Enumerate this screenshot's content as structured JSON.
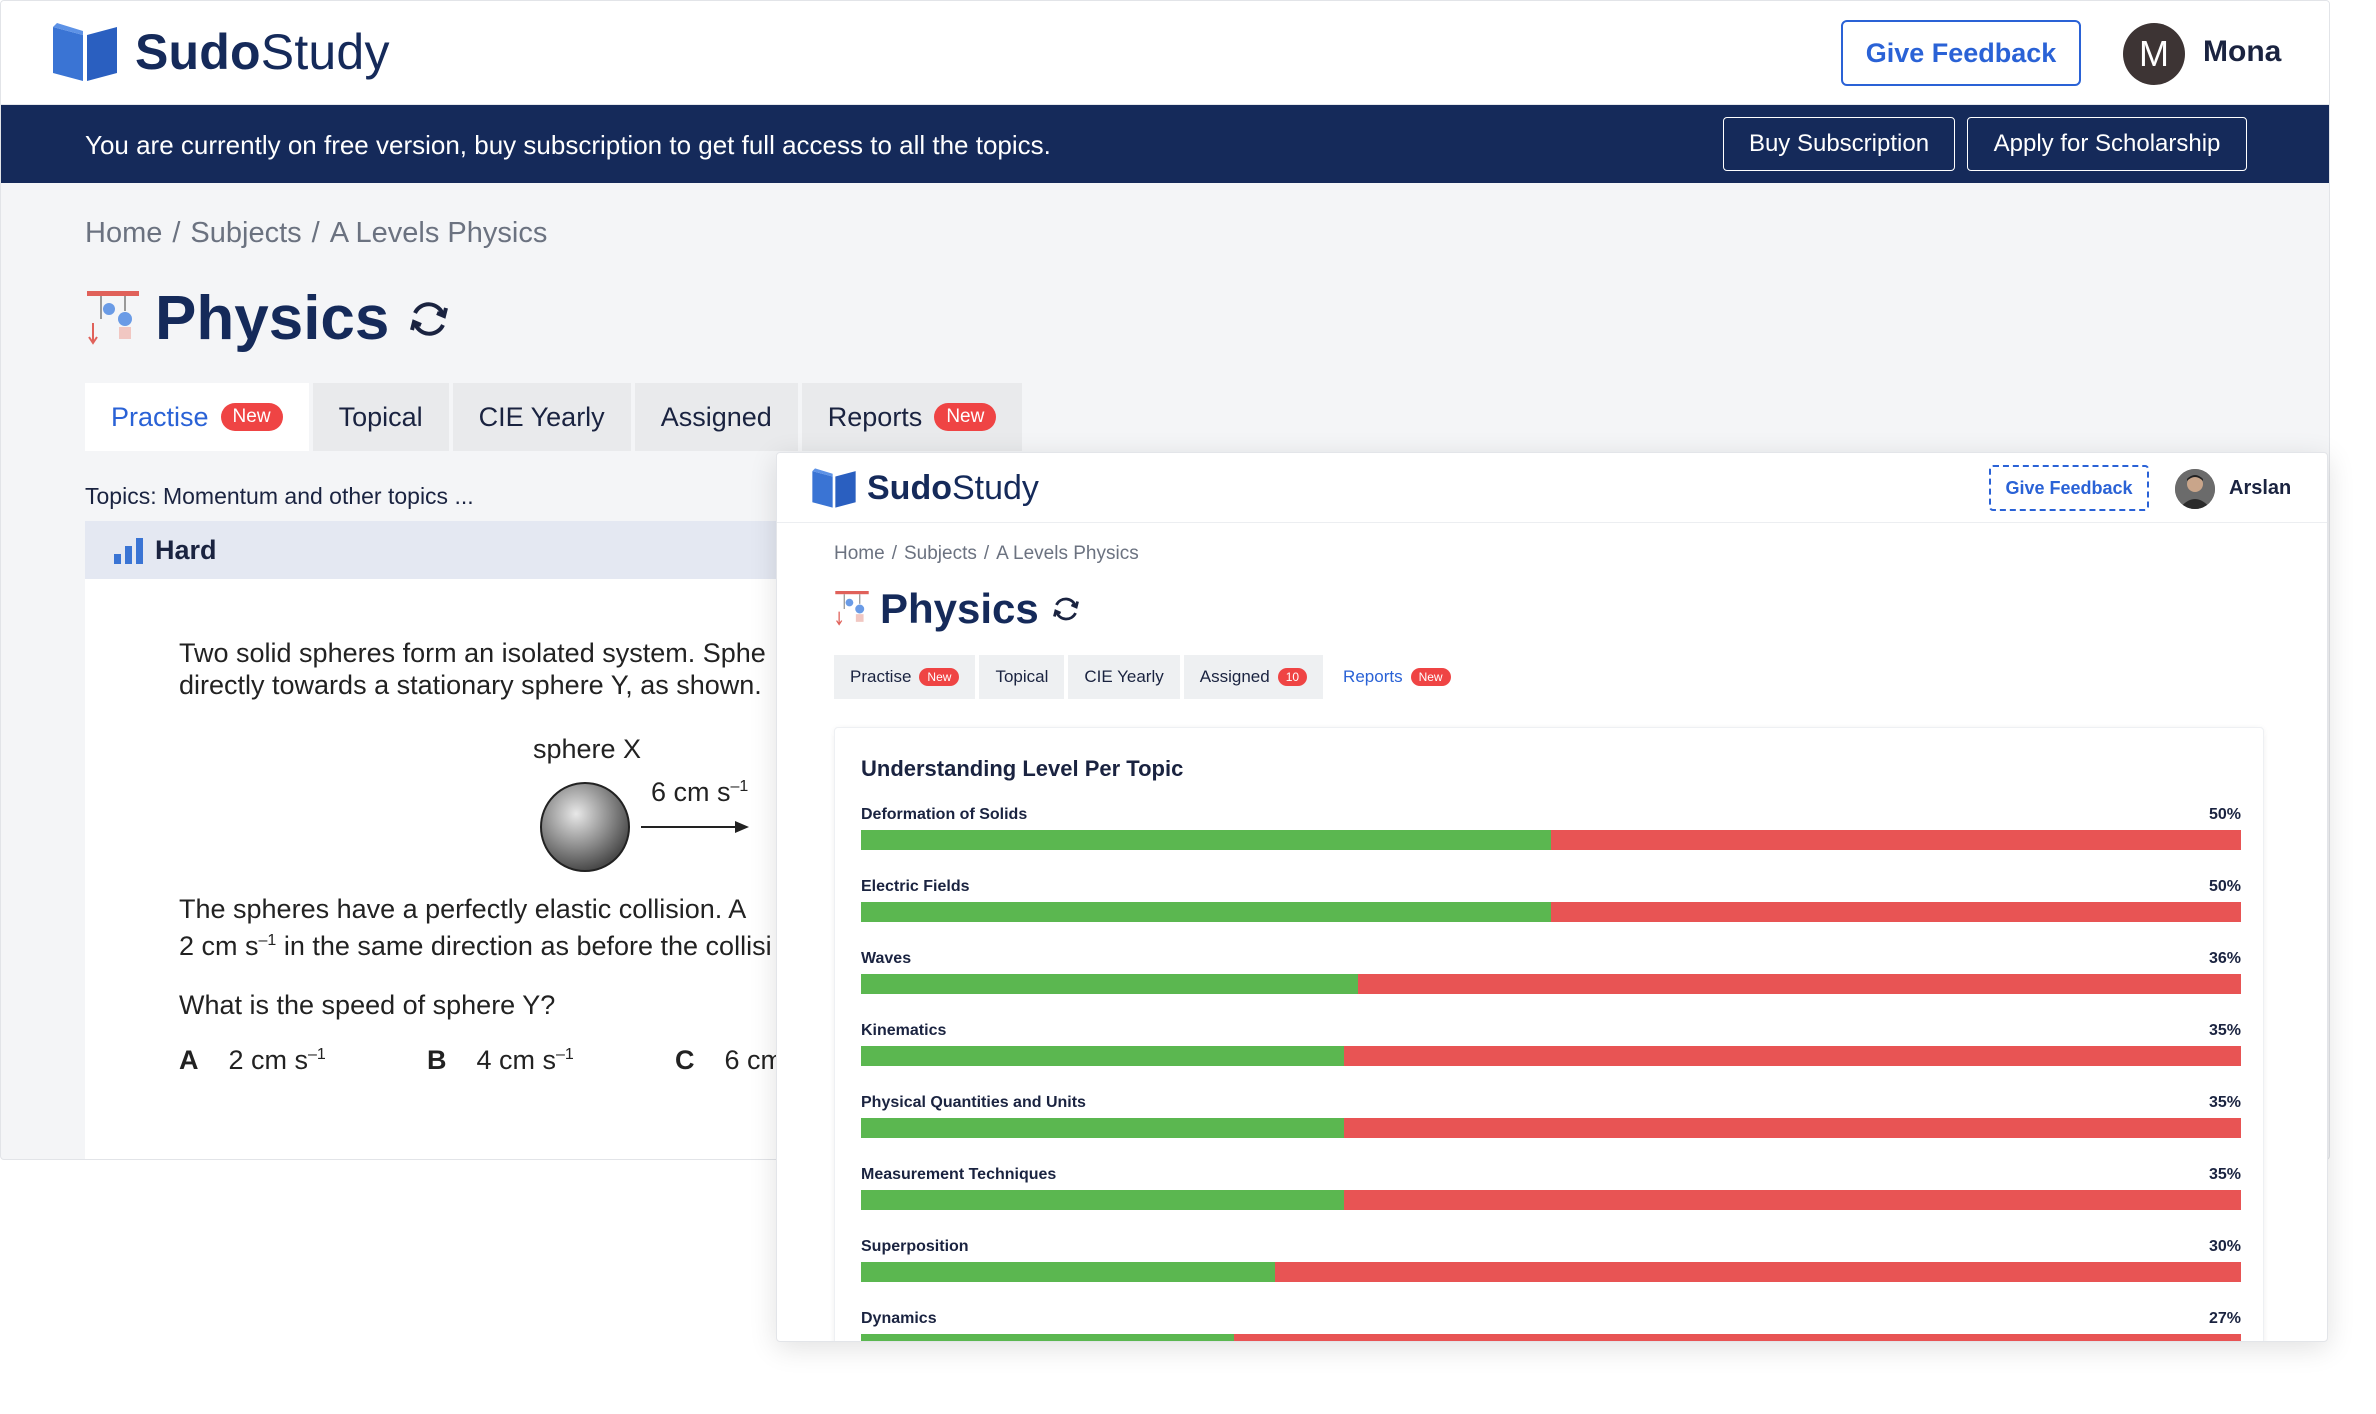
{
  "back": {
    "logo": {
      "bold": "Sudo",
      "light": "Study"
    },
    "give_feedback": "Give Feedback",
    "user": {
      "initial": "M",
      "name": "Mona"
    },
    "banner": {
      "text": "You are currently on free version, buy subscription to get full access to all the topics.",
      "buy": "Buy Subscription",
      "apply": "Apply for Scholarship"
    },
    "breadcrumb": [
      "Home",
      "Subjects",
      "A Levels Physics"
    ],
    "title": "Physics",
    "tabs": [
      {
        "label": "Practise",
        "badge": "New"
      },
      {
        "label": "Topical"
      },
      {
        "label": "CIE Yearly"
      },
      {
        "label": "Assigned"
      },
      {
        "label": "Reports",
        "badge": "New"
      }
    ],
    "topics": "Topics: Momentum and other topics ...",
    "difficulty": "Hard",
    "question": {
      "line1": "Two solid spheres form an isolated system. Sphe",
      "line2": "directly towards a stationary sphere Y, as shown.",
      "sphere_label": "sphere X",
      "speed": "6 cm s",
      "line3": "The spheres have a perfectly elastic collision. A",
      "line4_a": "2 cm s",
      "line4_b": " in the same direction as before the collisi",
      "prompt": "What is the speed of sphere Y?",
      "options": [
        {
          "letter": "A",
          "value": "2 cm s"
        },
        {
          "letter": "B",
          "value": "4 cm s"
        },
        {
          "letter": "C",
          "value": "6 cm"
        }
      ],
      "superscript": "–1"
    }
  },
  "front": {
    "logo": {
      "bold": "Sudo",
      "light": "Study"
    },
    "give_feedback": "Give Feedback",
    "user": {
      "name": "Arslan"
    },
    "breadcrumb": [
      "Home",
      "Subjects",
      "A Levels Physics"
    ],
    "title": "Physics",
    "tabs": [
      {
        "label": "Practise",
        "badge": "New"
      },
      {
        "label": "Topical"
      },
      {
        "label": "CIE Yearly"
      },
      {
        "label": "Assigned",
        "badge": "10"
      },
      {
        "label": "Reports",
        "badge": "New"
      }
    ],
    "report_title": "Understanding Level Per Topic",
    "topics": [
      {
        "name": "Deformation of Solids",
        "percent": 50
      },
      {
        "name": "Electric Fields",
        "percent": 50
      },
      {
        "name": "Waves",
        "percent": 36
      },
      {
        "name": "Kinematics",
        "percent": 35
      },
      {
        "name": "Physical Quantities and Units",
        "percent": 35
      },
      {
        "name": "Measurement Techniques",
        "percent": 35
      },
      {
        "name": "Superposition",
        "percent": 30
      },
      {
        "name": "Dynamics",
        "percent": 27
      }
    ],
    "percent_suffix": "%"
  },
  "colors": {
    "navy": "#152a5a",
    "accent": "#2a62d6",
    "good": "#5bb750",
    "bad": "#e85454",
    "badge": "#ef4444"
  }
}
